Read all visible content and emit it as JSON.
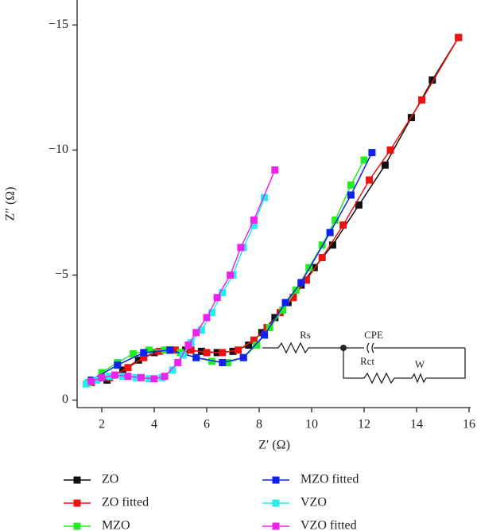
{
  "chart_data": {
    "type": "line",
    "xlabel": "Z′ (Ω)",
    "ylabel": "Z″ (Ω)",
    "xlim": [
      1,
      16
    ],
    "ylim": [
      0.3,
      -16
    ],
    "xticks": [
      2,
      4,
      6,
      8,
      10,
      12,
      14,
      16
    ],
    "yticks": [
      {
        "value": 0,
        "label": "0"
      },
      {
        "value": -5,
        "label": "−5"
      },
      {
        "value": -10,
        "label": "−10"
      },
      {
        "value": -15,
        "label": "−15"
      }
    ],
    "annotations": [
      "Rs",
      "CPE",
      "Rct",
      "W"
    ],
    "series": [
      {
        "name": "ZO",
        "color": "#111111",
        "x": [
          1.5,
          2.2,
          2.8,
          3.4,
          4.0,
          4.6,
          5.2,
          5.8,
          6.4,
          7.0,
          7.6,
          8.1,
          8.6,
          9.1,
          9.6,
          10.1,
          10.8,
          11.8,
          12.8,
          13.8,
          14.6,
          15.6
        ],
        "y": [
          -0.7,
          -0.8,
          -1.2,
          -1.6,
          -1.9,
          -2.0,
          -2.0,
          -1.95,
          -1.9,
          -1.95,
          -2.2,
          -2.7,
          -3.3,
          -3.9,
          -4.6,
          -5.3,
          -6.2,
          -7.8,
          -9.4,
          -11.3,
          -12.8,
          -14.5
        ]
      },
      {
        "name": "ZO fitted",
        "color": "#ee1111",
        "x": [
          1.6,
          2.3,
          3.0,
          3.6,
          4.2,
          4.8,
          5.4,
          6.0,
          6.6,
          7.2,
          7.8,
          8.3,
          8.8,
          9.3,
          9.8,
          10.4,
          11.2,
          12.2,
          13.0,
          14.2,
          15.6
        ],
        "y": [
          -0.7,
          -0.9,
          -1.3,
          -1.7,
          -1.95,
          -2.0,
          -2.0,
          -1.9,
          -1.9,
          -2.0,
          -2.4,
          -2.9,
          -3.5,
          -4.1,
          -4.8,
          -5.7,
          -7.0,
          -8.8,
          -10.0,
          -12.0,
          -14.5
        ]
      },
      {
        "name": "MZO",
        "color": "#22ee22",
        "x": [
          1.5,
          2.0,
          2.6,
          3.2,
          3.8,
          4.4,
          5.0,
          5.6,
          6.2,
          6.8,
          7.4,
          7.9,
          8.4,
          8.9,
          9.4,
          9.9,
          10.4,
          10.9,
          11.5,
          12.0
        ],
        "y": [
          -0.7,
          -1.1,
          -1.5,
          -1.85,
          -2.0,
          -2.0,
          -1.9,
          -1.7,
          -1.55,
          -1.5,
          -1.7,
          -2.2,
          -2.9,
          -3.6,
          -4.4,
          -5.3,
          -6.2,
          -7.2,
          -8.6,
          -9.6
        ]
      },
      {
        "name": "MZO fitted",
        "color": "#1122ee",
        "x": [
          1.6,
          2.6,
          3.6,
          4.6,
          5.6,
          6.6,
          7.4,
          8.2,
          9.0,
          9.6,
          10.7,
          11.5,
          12.3
        ],
        "y": [
          -0.8,
          -1.4,
          -1.9,
          -2.0,
          -1.7,
          -1.5,
          -1.7,
          -2.6,
          -3.9,
          -4.7,
          -6.7,
          -8.2,
          -9.9
        ]
      },
      {
        "name": "VZO",
        "color": "#22eeee",
        "x": [
          1.4,
          1.8,
          2.3,
          2.8,
          3.3,
          3.8,
          4.3,
          4.7,
          5.1,
          5.4,
          5.8,
          6.2,
          6.6,
          7.0,
          7.4,
          7.8,
          8.2
        ],
        "y": [
          -0.65,
          -0.8,
          -0.95,
          -0.95,
          -0.9,
          -0.85,
          -0.9,
          -1.2,
          -1.8,
          -2.3,
          -2.8,
          -3.5,
          -4.3,
          -5.0,
          -6.1,
          -7.0,
          -8.1
        ]
      },
      {
        "name": "VZO fitted",
        "color": "#ee22ee",
        "x": [
          1.6,
          2.0,
          2.5,
          3.0,
          3.5,
          4.0,
          4.4,
          4.9,
          5.3,
          5.6,
          6.0,
          6.4,
          6.9,
          7.3,
          7.8,
          8.6
        ],
        "y": [
          -0.75,
          -0.9,
          -1.0,
          -0.95,
          -0.9,
          -0.85,
          -0.95,
          -1.5,
          -2.2,
          -2.7,
          -3.3,
          -4.1,
          -5.0,
          -6.1,
          -7.2,
          -9.2
        ]
      }
    ]
  }
}
